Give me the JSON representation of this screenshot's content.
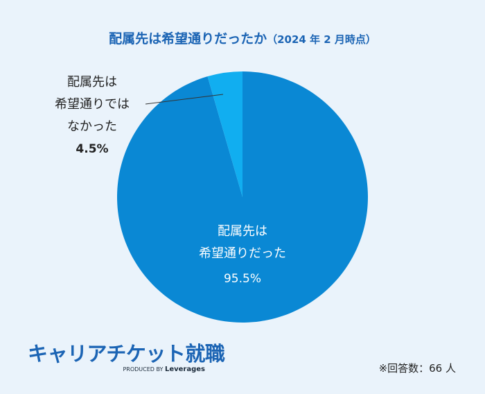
{
  "chart_data": {
    "type": "pie",
    "title": "配属先は希望通りだったか",
    "subtitle": "（2024 年 2 月時点）",
    "slices": [
      {
        "label_lines": [
          "配属先は",
          "希望通りだった"
        ],
        "value": 95.5,
        "value_label": "95.5%",
        "color": "#0a88d4"
      },
      {
        "label_lines": [
          "配属先は",
          "希望通りでは",
          "なかった"
        ],
        "value": 4.5,
        "value_label": "4.5%",
        "color": "#11aef0"
      }
    ]
  },
  "logo": {
    "text": "キャリアチケット就職",
    "byline_prefix": "PRODUCED BY",
    "byline_brand": "Leverages"
  },
  "note": "※回答数：66 人"
}
